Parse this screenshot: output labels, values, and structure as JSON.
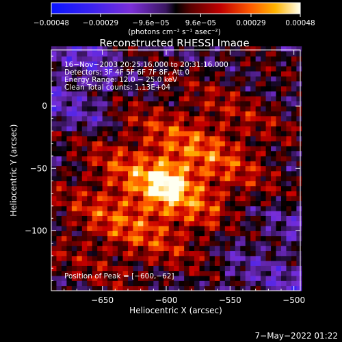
{
  "chart_data": {
    "type": "heatmap",
    "title": "Reconstructed RHESSI Image",
    "xlabel": "Heliocentric X (arcsec)",
    "ylabel": "Heliocentric Y (arcsec)",
    "xlim": [
      -690,
      -495
    ],
    "ylim": [
      -148,
      45
    ],
    "x_ticks": [
      -650,
      -600,
      -550,
      -500
    ],
    "x_tick_labels": [
      "−650",
      "−600",
      "−550",
      "−500"
    ],
    "y_ticks": [
      0,
      -50,
      -100
    ],
    "y_tick_labels": [
      "0",
      "−50",
      "−100"
    ],
    "colorbar": {
      "range": [
        -0.00048,
        0.00048
      ],
      "ticks": [
        -0.00048,
        -0.00029,
        -9.6e-05,
        9.6e-05,
        0.00029,
        0.00048
      ],
      "tick_labels": [
        "−0.00048",
        "−0.00029",
        "−9.6e−05",
        "9.6e−05",
        "0.00029",
        "0.00048"
      ],
      "units_label": "(photons cm⁻² s⁻¹ asec⁻²)"
    },
    "annotations": [
      "16−Nov−2003 20:25:16.000 to 20:31:16.000",
      "Detectors: 3F 4F 5F 6F 7F 8F, Att 0",
      "Energy Range: 12.0 − 25.0 keV",
      "Clean     Total counts: 1.13E+04"
    ],
    "peak_label": "Position of Peak = [−600,−62]",
    "peak": [
      -600,
      -62
    ],
    "timestamp": "7−May−2022 01:22"
  }
}
